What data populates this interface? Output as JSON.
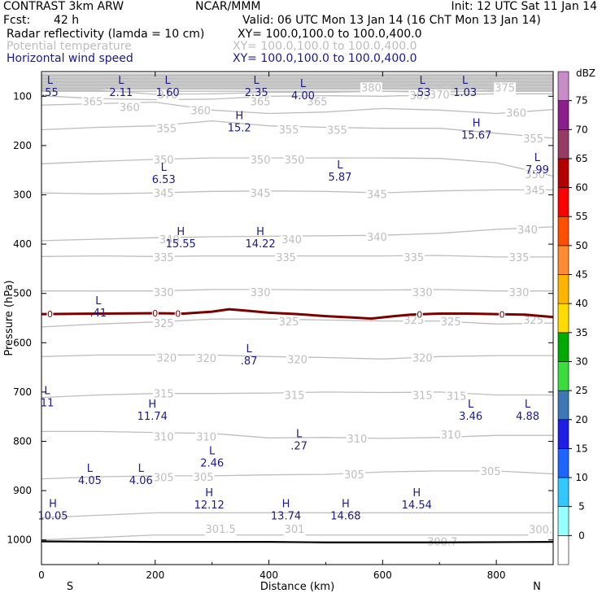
{
  "header": {
    "model": "CONTRAST  3km ARW",
    "center": "NCAR/MMM",
    "init": "Init: 12 UTC Sat 11 Jan 14",
    "fcst_label": "Fcst:",
    "fcst_value": "42 h",
    "valid": "Valid: 06 UTC Mon 13 Jan 14 (16 ChT Mon 13 Jan 14)",
    "field1": "Radar reflectivity (lamda = 10 cm)",
    "field1_xy": "XY= 100.0,100.0 to 100.0,400.0",
    "field2": "Potential temperature",
    "field2_xy": "XY= 100.0,100.0 to 100.0,400.0",
    "field3": "Horizontal wind speed",
    "field3_xy": "XY= 100.0,100.0 to 100.0,400.0"
  },
  "colors": {
    "theta": "#bdbdbd",
    "wind": "#1a1a8c",
    "zero_line": "#7a0000",
    "ground": "#000000"
  },
  "chart_data": {
    "type": "cross-section",
    "xlabel": "Distance (km)",
    "ylabel": "Pressure (hPa)",
    "xlim": [
      0,
      900
    ],
    "ylim": [
      1050,
      50
    ],
    "x_ticks": [
      0,
      200,
      400,
      600,
      800
    ],
    "y_ticks": [
      100,
      200,
      300,
      400,
      500,
      600,
      700,
      800,
      900,
      1000
    ],
    "x_end_labels": {
      "left": "S",
      "right": "N"
    },
    "colorbar": {
      "unit": "dBZ",
      "levels": [
        0,
        5,
        10,
        15,
        20,
        25,
        30,
        35,
        40,
        45,
        50,
        55,
        60,
        65,
        70,
        75
      ],
      "colors": [
        "#ffffff",
        "#96ffff",
        "#32c8ff",
        "#1e64ff",
        "#1e1ee6",
        "#3c78b4",
        "#3cdc3c",
        "#00aa00",
        "#ffdc00",
        "#ffb400",
        "#ff8c32",
        "#ff5000",
        "#ff0000",
        "#b40000",
        "#963c64",
        "#8c1e8c",
        "#c88cc8"
      ]
    },
    "theta_contours": [
      {
        "value": "375",
        "p": [
          90,
          90,
          90,
          90,
          90,
          90,
          90,
          90,
          90,
          90
        ]
      },
      {
        "value": "370",
        "p": [
          88,
          88,
          96,
          95,
          92,
          92,
          90,
          92,
          88,
          88
        ]
      },
      {
        "value": "365",
        "p": [
          99,
          105,
          107,
          106,
          100,
          99,
          100,
          97,
          95,
          95
        ]
      },
      {
        "value": "360",
        "p": [
          118,
          115,
          112,
          128,
          135,
          132,
          125,
          128,
          135,
          127
        ]
      },
      {
        "value": "355",
        "p": [
          168,
          163,
          160,
          150,
          160,
          163,
          165,
          165,
          175,
          185
        ]
      },
      {
        "value": "350",
        "p": [
          237,
          232,
          228,
          225,
          225,
          225,
          225,
          226,
          235,
          262
        ]
      },
      {
        "value": "345",
        "p": [
          296,
          298,
          296,
          293,
          292,
          293,
          296,
          292,
          290,
          290
        ]
      },
      {
        "value": "340",
        "p": [
          393,
          390,
          387,
          385,
          384,
          383,
          382,
          378,
          370,
          365
        ]
      },
      {
        "value": "335",
        "p": [
          425,
          424,
          425,
          424,
          424,
          424,
          424,
          423,
          426,
          426
        ]
      },
      {
        "value": "330",
        "p": [
          495,
          495,
          495,
          492,
          492,
          493,
          493,
          492,
          495,
          495
        ]
      },
      {
        "value": "325",
        "p": [
          568,
          562,
          558,
          552,
          552,
          554,
          556,
          556,
          562,
          560
        ]
      },
      {
        "value": "320",
        "p": [
          628,
          625,
          625,
          625,
          628,
          630,
          633,
          628,
          626,
          626
        ]
      },
      {
        "value": "315",
        "p": [
          711,
          706,
          703,
          703,
          702,
          700,
          701,
          700,
          706,
          706
        ]
      },
      {
        "value": "310",
        "p": [
          780,
          780,
          782,
          784,
          793,
          792,
          794,
          792,
          788,
          788
        ]
      },
      {
        "value": "305",
        "p": [
          876,
          872,
          870,
          870,
          868,
          867,
          862,
          860,
          860,
          866
        ]
      },
      {
        "value": "301.5",
        "p": [
          955,
          950,
          945,
          945,
          945,
          945,
          945,
          945,
          945,
          945
        ]
      },
      {
        "value": "300.7",
        "p": [
          1000,
          995,
          990,
          990,
          990,
          990,
          990,
          990,
          990,
          990
        ]
      }
    ],
    "theta_labels": [
      {
        "text": "380",
        "x": 580,
        "p": 82
      },
      {
        "text": "375",
        "x": 815,
        "p": 82
      },
      {
        "text": "370",
        "x": 222,
        "p": 96
      },
      {
        "text": "370",
        "x": 700,
        "p": 96
      },
      {
        "text": "365",
        "x": 90,
        "p": 110
      },
      {
        "text": "365",
        "x": 385,
        "p": 110
      },
      {
        "text": "365",
        "x": 485,
        "p": 110
      },
      {
        "text": "365",
        "x": 665,
        "p": 98
      },
      {
        "text": "360",
        "x": 155,
        "p": 122
      },
      {
        "text": "360",
        "x": 280,
        "p": 128
      },
      {
        "text": "360",
        "x": 835,
        "p": 133
      },
      {
        "text": "355",
        "x": 220,
        "p": 165
      },
      {
        "text": "355",
        "x": 435,
        "p": 167
      },
      {
        "text": "355",
        "x": 520,
        "p": 168
      },
      {
        "text": "355",
        "x": 865,
        "p": 185
      },
      {
        "text": "350",
        "x": 215,
        "p": 228
      },
      {
        "text": "350",
        "x": 385,
        "p": 228
      },
      {
        "text": "350",
        "x": 445,
        "p": 228
      },
      {
        "text": "350",
        "x": 868,
        "p": 258
      },
      {
        "text": "345",
        "x": 215,
        "p": 296
      },
      {
        "text": "345",
        "x": 385,
        "p": 296
      },
      {
        "text": "345",
        "x": 590,
        "p": 298
      },
      {
        "text": "345",
        "x": 868,
        "p": 290
      },
      {
        "text": "340",
        "x": 225,
        "p": 390
      },
      {
        "text": "340",
        "x": 440,
        "p": 390
      },
      {
        "text": "340",
        "x": 590,
        "p": 385
      },
      {
        "text": "340",
        "x": 855,
        "p": 370
      },
      {
        "text": "335",
        "x": 215,
        "p": 426
      },
      {
        "text": "335",
        "x": 430,
        "p": 426
      },
      {
        "text": "335",
        "x": 655,
        "p": 426
      },
      {
        "text": "335",
        "x": 840,
        "p": 426
      },
      {
        "text": "330",
        "x": 215,
        "p": 497
      },
      {
        "text": "330",
        "x": 385,
        "p": 497
      },
      {
        "text": "330",
        "x": 670,
        "p": 497
      },
      {
        "text": "330",
        "x": 840,
        "p": 497
      },
      {
        "text": "325",
        "x": 215,
        "p": 560
      },
      {
        "text": "325",
        "x": 435,
        "p": 557
      },
      {
        "text": "325",
        "x": 655,
        "p": 553
      },
      {
        "text": "325",
        "x": 720,
        "p": 557
      },
      {
        "text": "325",
        "x": 865,
        "p": 553
      },
      {
        "text": "320",
        "x": 220,
        "p": 630
      },
      {
        "text": "320",
        "x": 290,
        "p": 631
      },
      {
        "text": "320",
        "x": 450,
        "p": 633
      },
      {
        "text": "320",
        "x": 670,
        "p": 630
      },
      {
        "text": "315",
        "x": 215,
        "p": 703
      },
      {
        "text": "315",
        "x": 445,
        "p": 706
      },
      {
        "text": "315",
        "x": 670,
        "p": 706
      },
      {
        "text": "315",
        "x": 730,
        "p": 708
      },
      {
        "text": "310",
        "x": 215,
        "p": 790
      },
      {
        "text": "310",
        "x": 290,
        "p": 790
      },
      {
        "text": "310",
        "x": 555,
        "p": 794
      },
      {
        "text": "310",
        "x": 720,
        "p": 786
      },
      {
        "text": "305",
        "x": 215,
        "p": 873
      },
      {
        "text": "305",
        "x": 285,
        "p": 872
      },
      {
        "text": "305",
        "x": 550,
        "p": 867
      },
      {
        "text": "305",
        "x": 790,
        "p": 860
      },
      {
        "text": "301.5",
        "x": 315,
        "p": 977
      },
      {
        "text": "301",
        "x": 445,
        "p": 977
      },
      {
        "text": "300.7",
        "x": 705,
        "p": 1003
      },
      {
        "text": "300.",
        "x": 878,
        "p": 978
      }
    ],
    "wind_extrema": [
      {
        "type": "L",
        "value": ".55",
        "x": 15,
        "p": 78
      },
      {
        "type": "L",
        "value": "2.11",
        "x": 140,
        "p": 78
      },
      {
        "type": "L",
        "value": "1.60",
        "x": 222,
        "p": 78
      },
      {
        "type": "L",
        "value": "2.35",
        "x": 378,
        "p": 78
      },
      {
        "type": "L",
        "value": "4.00",
        "x": 460,
        "p": 85
      },
      {
        "type": "L",
        "value": ".53",
        "x": 670,
        "p": 78
      },
      {
        "type": "L",
        "value": "1.03",
        "x": 745,
        "p": 78
      },
      {
        "type": "H",
        "value": "15.2",
        "x": 348,
        "p": 150
      },
      {
        "type": "H",
        "value": "15.67",
        "x": 765,
        "p": 165
      },
      {
        "type": "L",
        "value": "7.99",
        "x": 872,
        "p": 235
      },
      {
        "type": "L",
        "value": "6.53",
        "x": 215,
        "p": 255
      },
      {
        "type": "L",
        "value": "5.87",
        "x": 525,
        "p": 250
      },
      {
        "type": "H",
        "value": "15.55",
        "x": 245,
        "p": 385
      },
      {
        "type": "H",
        "value": "14.22",
        "x": 385,
        "p": 385
      },
      {
        "type": "L",
        "value": ".41",
        "x": 100,
        "p": 525
      },
      {
        "type": "L",
        "value": ".87",
        "x": 365,
        "p": 623
      },
      {
        "type": "L",
        "value": "11",
        "x": 10,
        "p": 708
      },
      {
        "type": "H",
        "value": "11.74",
        "x": 195,
        "p": 735
      },
      {
        "type": "L",
        "value": "3.46",
        "x": 755,
        "p": 735
      },
      {
        "type": "L",
        "value": "4.88",
        "x": 855,
        "p": 735
      },
      {
        "type": "L",
        "value": ".27",
        "x": 453,
        "p": 795
      },
      {
        "type": "L",
        "value": "2.46",
        "x": 300,
        "p": 830
      },
      {
        "type": "L",
        "value": "4.05",
        "x": 85,
        "p": 865
      },
      {
        "type": "L",
        "value": "4.06",
        "x": 175,
        "p": 865
      },
      {
        "type": "H",
        "value": "12.12",
        "x": 295,
        "p": 915
      },
      {
        "type": "H",
        "value": "10.05",
        "x": 20,
        "p": 937
      },
      {
        "type": "H",
        "value": "13.74",
        "x": 430,
        "p": 937
      },
      {
        "type": "H",
        "value": "14.68",
        "x": 535,
        "p": 937
      },
      {
        "type": "H",
        "value": "14.54",
        "x": 660,
        "p": 915
      }
    ],
    "zero_contour": {
      "label": "0",
      "x": [
        0,
        100,
        200,
        250,
        300,
        330,
        360,
        400,
        450,
        500,
        550,
        580,
        620,
        650,
        700,
        750,
        800,
        850,
        900
      ],
      "p": [
        542,
        541,
        540,
        541,
        537,
        532,
        535,
        539,
        542,
        546,
        549,
        551,
        546,
        543,
        541,
        541,
        542,
        543,
        548
      ],
      "label_x": [
        15,
        200,
        240,
        665,
        810
      ]
    },
    "ground": {
      "x": [
        0,
        200,
        400,
        500,
        700,
        900
      ],
      "p": [
        1003,
        1004,
        1004,
        1005,
        1005,
        1004
      ]
    }
  }
}
